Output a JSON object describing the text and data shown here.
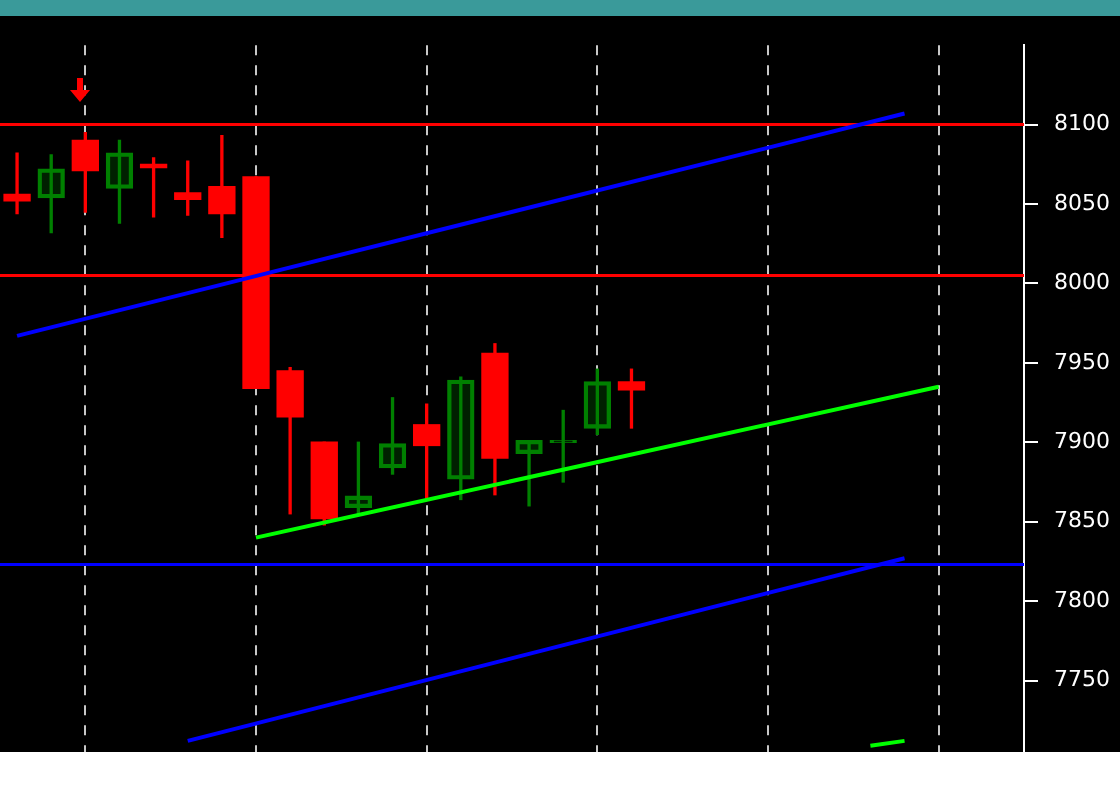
{
  "chart_data": {
    "type": "candlestick",
    "categories": [
      null,
      null,
      null,
      null,
      null,
      null,
      null,
      null,
      null,
      null,
      null,
      null,
      null,
      null,
      null,
      null,
      null,
      null,
      null,
      null,
      null,
      null,
      null,
      null,
      null,
      null,
      null,
      null,
      null,
      null
    ],
    "ohlc": [
      [
        8056,
        8082,
        8044,
        8052
      ],
      [
        8054,
        8081,
        8032,
        8072
      ],
      [
        8090,
        8095,
        8045,
        8071
      ],
      [
        8060,
        8090,
        8038,
        8082
      ],
      [
        8075,
        8079,
        8042,
        8073
      ],
      [
        8057,
        8077,
        8043,
        8053
      ],
      [
        8061,
        8093,
        8029,
        8044
      ],
      [
        8067,
        8067,
        7934,
        7934
      ],
      [
        7945,
        7947,
        7855,
        7916
      ],
      [
        7900,
        7900,
        7848,
        7852
      ],
      [
        7859,
        7900,
        7855,
        7866
      ],
      [
        7884,
        7928,
        7880,
        7899
      ],
      [
        7911,
        7924,
        7864,
        7898
      ],
      [
        7877,
        7941,
        7864,
        7939
      ],
      [
        7956,
        7962,
        7867,
        7890
      ],
      [
        7893,
        7901,
        7860,
        7901
      ],
      [
        7900,
        7920,
        7875,
        7901
      ],
      [
        7909,
        7946,
        7905,
        7938
      ],
      [
        7938,
        7946,
        7909,
        7933
      ],
      null,
      null,
      null,
      null,
      null,
      null,
      null,
      null,
      null,
      null,
      null
    ],
    "colors": [
      "#ff0000",
      "#008000",
      "#ff0000",
      "#008000",
      "#ff0000",
      "#ff0000",
      "#ff0000",
      "#ff0000",
      "#ff0000",
      "#ff0000",
      "#008000",
      "#008000",
      "#ff0000",
      "#008000",
      "#ff0000",
      "#008000",
      "#008000",
      "#008000",
      "#ff0000",
      null,
      null,
      null,
      null,
      null,
      null,
      null,
      null,
      null,
      null,
      null
    ],
    "series": [
      {
        "type": "line",
        "values": [
          null,
          null,
          null,
          null,
          null,
          null,
          null,
          7840,
          null,
          null,
          null,
          null,
          null,
          null,
          null,
          null,
          null,
          null,
          null,
          null,
          null,
          null,
          null,
          null,
          null,
          null,
          null,
          7935,
          null,
          null
        ],
        "color": "#00ff00"
      },
      {
        "type": "line",
        "values": [
          null,
          null,
          null,
          null,
          null,
          null,
          null,
          null,
          null,
          null,
          null,
          null,
          null,
          null,
          null,
          null,
          null,
          null,
          null,
          null,
          null,
          null,
          null,
          null,
          null,
          7709,
          7712,
          null,
          null,
          null
        ],
        "color": "#00ff00"
      },
      {
        "type": "line",
        "values": [
          7967,
          null,
          null,
          null,
          null,
          null,
          null,
          null,
          null,
          null,
          null,
          null,
          null,
          null,
          null,
          null,
          null,
          null,
          null,
          null,
          null,
          null,
          null,
          null,
          null,
          null,
          8107,
          null,
          null,
          null
        ],
        "color": "#0000ff"
      },
      {
        "type": "line",
        "values": [
          null,
          null,
          null,
          null,
          null,
          7712,
          null,
          null,
          null,
          null,
          null,
          null,
          null,
          null,
          null,
          null,
          null,
          null,
          null,
          null,
          null,
          null,
          null,
          null,
          null,
          null,
          7827,
          null,
          null,
          null
        ],
        "color": "#0000ff"
      }
    ],
    "ref_lines": [
      {
        "axis": "y",
        "value": 8100,
        "color": "#ff0000"
      },
      {
        "axis": "y",
        "value": 8005,
        "color": "#ff0000"
      },
      {
        "axis": "y",
        "value": 7823,
        "color": "#0000ff"
      }
    ],
    "ylim": [
      7705,
      8150
    ],
    "yticks": [
      7750,
      7800,
      7850,
      7900,
      7950,
      8000,
      8050,
      8100
    ],
    "grid": "x",
    "tick_labels": "y",
    "legend": false
  }
}
